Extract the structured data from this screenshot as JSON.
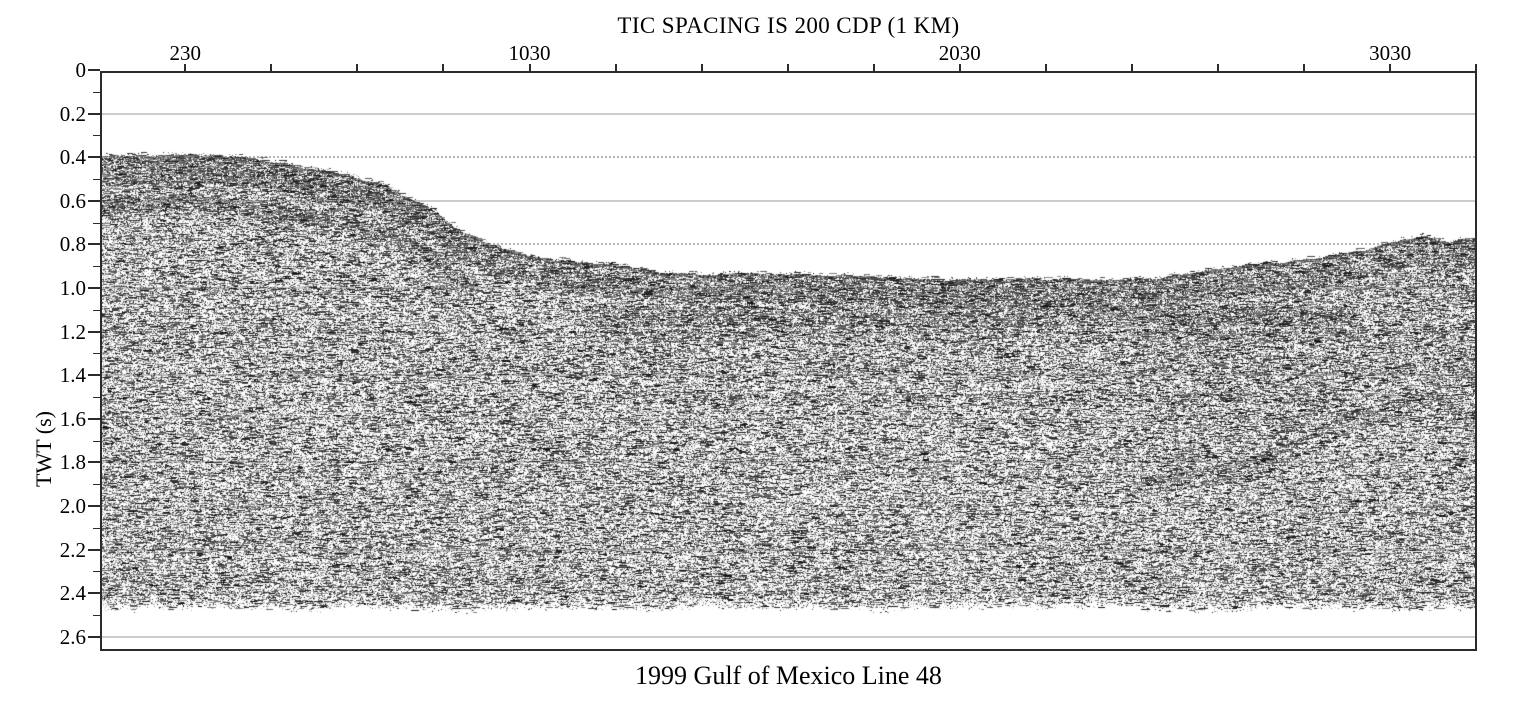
{
  "figure": {
    "kind": "scanned grayscale seismic reflection profile"
  },
  "colors": {
    "background": "#ffffff",
    "axis": "#2b2b2b",
    "text": "#000000",
    "grid_solid": "#cccccc",
    "grid_dotted": "#b5b5b5",
    "seismic_ink": "#1a1a1a"
  },
  "chart_data": {
    "type": "heatmap",
    "subtype": "seismic-reflection-section",
    "title": "TIC SPACING IS 200 CDP (1 KM)",
    "caption": "1999 Gulf of Mexico Line 48",
    "xlabel": "",
    "ylabel": "TWT (s)",
    "grid": "horizontal gridlines every 0.2 s, alternating solid and dotted",
    "x_axis": {
      "side": "top",
      "units": "CDP",
      "lim": [
        32,
        3232
      ],
      "tick_step": 200,
      "first_tick": 230,
      "last_tick": 3230,
      "labeled_ticks": [
        230,
        1030,
        2030,
        3030
      ],
      "note": "tic spacing is 200 CDP (1 km)"
    },
    "y_axis": {
      "units": "seconds (two-way travel time)",
      "lim": [
        0,
        2.67
      ],
      "major_tick_step": 0.2,
      "minor_tick_step": 0.1,
      "major_tick_labels": [
        "0",
        "0.2",
        "0.4",
        "0.6",
        "0.8",
        "1.0",
        "1.2",
        "1.4",
        "1.6",
        "1.8",
        "2.0",
        "2.2",
        "2.4",
        "2.6"
      ]
    },
    "gridlines": {
      "solid_twt": [
        0.2,
        0.6,
        1.0,
        1.4,
        1.8,
        2.2,
        2.6
      ],
      "dotted_twt": [
        0.4,
        0.8,
        1.2,
        1.6,
        2.0,
        2.4
      ]
    },
    "seafloor_profile_cdp_twt": [
      [
        32,
        0.39
      ],
      [
        230,
        0.376
      ],
      [
        400,
        0.4
      ],
      [
        500,
        0.436
      ],
      [
        600,
        0.47
      ],
      [
        700,
        0.53
      ],
      [
        790,
        0.625
      ],
      [
        860,
        0.72
      ],
      [
        930,
        0.79
      ],
      [
        1000,
        0.835
      ],
      [
        1100,
        0.865
      ],
      [
        1200,
        0.885
      ],
      [
        1360,
        0.92
      ],
      [
        1600,
        0.93
      ],
      [
        1900,
        0.945
      ],
      [
        2150,
        0.955
      ],
      [
        2400,
        0.955
      ],
      [
        2550,
        0.935
      ],
      [
        2700,
        0.89
      ],
      [
        2850,
        0.855
      ],
      [
        2960,
        0.82
      ],
      [
        3060,
        0.775
      ],
      [
        3105,
        0.76
      ],
      [
        3140,
        0.775
      ],
      [
        3165,
        0.79
      ],
      [
        3200,
        0.77
      ],
      [
        3232,
        0.775
      ]
    ],
    "sub_bottom_reflectors": [
      {
        "name": "seafloor-parallel shelf reflector",
        "extent_cdp": [
          32,
          900
        ],
        "offset_below_seafloor_s": 0.22
      },
      {
        "name": "basin layered package",
        "extent_cdp": [
          1150,
          2950
        ],
        "twt_band_s": [
          1.08,
          1.24
        ]
      },
      {
        "name": "faint mid band",
        "extent_cdp": [
          700,
          3232
        ],
        "twt_band_s": [
          1.33,
          1.39
        ]
      },
      {
        "name": "faint basin band",
        "extent_cdp": [
          1200,
          2750
        ],
        "twt_band_s": [
          1.48,
          1.54
        ]
      },
      {
        "name": "deep rising reflector with hummock",
        "path_cdp_twt": [
          [
            2450,
            1.88
          ],
          [
            2600,
            1.84
          ],
          [
            2700,
            1.8
          ],
          [
            2820,
            1.7
          ],
          [
            2940,
            1.575
          ],
          [
            3050,
            1.53
          ],
          [
            3115,
            1.48
          ],
          [
            3160,
            1.52
          ],
          [
            3200,
            1.585
          ],
          [
            3232,
            1.6
          ]
        ]
      }
    ],
    "noise_bottom_twt": 2.48,
    "data_extent_note": "dense speckled seismic texture from the seafloor pick down to ~2.48 s; white above seafloor and below noise floor"
  }
}
